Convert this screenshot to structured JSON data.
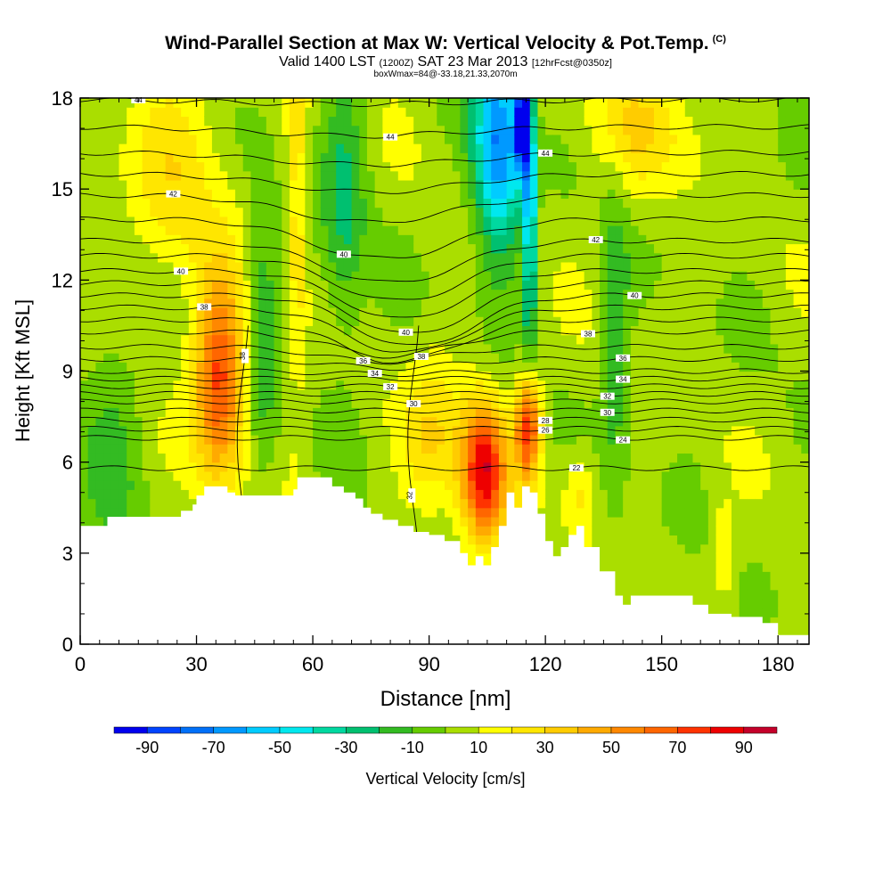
{
  "header": {
    "title": "Wind-Parallel Section at Max W: Vertical Velocity & Pot.Temp.",
    "copyright": "(C)",
    "subtitle_main": "Valid 1400 LST",
    "subtitle_zulu": "(1200Z)",
    "subtitle_date": "SAT 23 Mar 2013",
    "subtitle_fcst": "[12hrFcst@0350z]",
    "box_info": "boxWmax=84@-33.18,21.33,2070m"
  },
  "chart_data": {
    "type": "heatmap",
    "xlabel": "Distance [nm]",
    "ylabel": "Height [Kft MSL]",
    "xlim": [
      0,
      188
    ],
    "ylim": [
      0,
      18
    ],
    "x_ticks": [
      0,
      30,
      60,
      90,
      120,
      150,
      180
    ],
    "y_ticks": [
      0,
      3,
      6,
      9,
      12,
      15,
      18
    ],
    "colorbar": {
      "label": "Vertical Velocity [cm/s]",
      "ticks": [
        -90,
        -70,
        -50,
        -30,
        -10,
        10,
        30,
        50,
        70,
        90
      ],
      "bins": [
        {
          "from": -100,
          "to": -90,
          "color": "#0000ee"
        },
        {
          "from": -90,
          "to": -80,
          "color": "#0044ff"
        },
        {
          "from": -80,
          "to": -70,
          "color": "#0070f8"
        },
        {
          "from": -70,
          "to": -60,
          "color": "#0099ff"
        },
        {
          "from": -60,
          "to": -50,
          "color": "#00ccff"
        },
        {
          "from": -50,
          "to": -40,
          "color": "#00e8ee"
        },
        {
          "from": -40,
          "to": -30,
          "color": "#00d8a0"
        },
        {
          "from": -30,
          "to": -20,
          "color": "#00c070"
        },
        {
          "from": -20,
          "to": -10,
          "color": "#33bb22"
        },
        {
          "from": -10,
          "to": 0,
          "color": "#66cc00"
        },
        {
          "from": 0,
          "to": 10,
          "color": "#aade00"
        },
        {
          "from": 10,
          "to": 20,
          "color": "#ffff00"
        },
        {
          "from": 20,
          "to": 30,
          "color": "#ffe600"
        },
        {
          "from": 30,
          "to": 40,
          "color": "#ffcc00"
        },
        {
          "from": 40,
          "to": 50,
          "color": "#ffaa00"
        },
        {
          "from": 50,
          "to": 60,
          "color": "#ff8800"
        },
        {
          "from": 60,
          "to": 70,
          "color": "#ff6600"
        },
        {
          "from": 70,
          "to": 80,
          "color": "#ff3300"
        },
        {
          "from": 80,
          "to": 90,
          "color": "#ee0000"
        },
        {
          "from": 90,
          "to": 100,
          "color": "#c4002a"
        }
      ]
    },
    "vertical_velocity_features": [
      {
        "x": 36,
        "z": 8.7,
        "peak": 70,
        "sx": 4.5,
        "sz": 2.3
      },
      {
        "x": 104,
        "z": 5.7,
        "peak": 84,
        "sx": 4.0,
        "sz": 1.6
      },
      {
        "x": 115.5,
        "z": 7.2,
        "peak": 75,
        "sx": 2.2,
        "sz": 1.2
      },
      {
        "x": 91,
        "z": 6.8,
        "peak": 25,
        "sx": 5.5,
        "sz": 1.8
      },
      {
        "x": 108,
        "z": 16.5,
        "peak": -75,
        "sx": 4.5,
        "sz": 2.5
      },
      {
        "x": 114,
        "z": 17.2,
        "peak": -95,
        "sx": 1.3,
        "sz": 1.2
      },
      {
        "x": 116,
        "z": 14.0,
        "peak": -70,
        "sx": 0.9,
        "sz": 3.0
      },
      {
        "x": 68,
        "z": 14.5,
        "peak": -25,
        "sx": 4.0,
        "sz": 3.5
      },
      {
        "x": 56,
        "z": 14.0,
        "peak": 22,
        "sx": 1.8,
        "sz": 4.5
      },
      {
        "x": 25,
        "z": 15.5,
        "peak": 20,
        "sx": 9.0,
        "sz": 3.0
      },
      {
        "x": 145,
        "z": 17.0,
        "peak": 22,
        "sx": 10.0,
        "sz": 1.5
      },
      {
        "x": 138,
        "z": 10.0,
        "peak": -20,
        "sx": 2.5,
        "sz": 4.0
      },
      {
        "x": 47,
        "z": 10.5,
        "peak": -20,
        "sx": 3.0,
        "sz": 4.0
      },
      {
        "x": 129,
        "z": 5.0,
        "peak": 20,
        "sx": 3.0,
        "sz": 1.0
      },
      {
        "x": 166,
        "z": 3.0,
        "peak": 22,
        "sx": 2.0,
        "sz": 1.0
      },
      {
        "x": 8,
        "z": 7.0,
        "peak": -15,
        "sx": 6.0,
        "sz": 3.0
      }
    ],
    "terrain": {
      "x": [
        0,
        7,
        7,
        26,
        26,
        29,
        29,
        30,
        30,
        32,
        32,
        38,
        38,
        40,
        40,
        55,
        55,
        56,
        56,
        61,
        61,
        65,
        65,
        68,
        68,
        71,
        71,
        73,
        73,
        75,
        75,
        78,
        78,
        82,
        82,
        86,
        86,
        90,
        90,
        94,
        94,
        98,
        98,
        100,
        100,
        102,
        102,
        104,
        104,
        106,
        106,
        108,
        108,
        110,
        110,
        112,
        112,
        114,
        114,
        116,
        116,
        118,
        118,
        120,
        120,
        122,
        122,
        124,
        124,
        126,
        126,
        128,
        128,
        130,
        130,
        134,
        134,
        138,
        138,
        140,
        140,
        142,
        142,
        144,
        144,
        146,
        146,
        148,
        148,
        150,
        150,
        158,
        158,
        162,
        162,
        166,
        166,
        168,
        168,
        176,
        176,
        180,
        180,
        188
      ],
      "z": [
        3.9,
        3.9,
        4.2,
        4.2,
        4.4,
        4.4,
        4.6,
        4.6,
        4.9,
        4.9,
        5.2,
        5.2,
        5.0,
        5.0,
        4.9,
        4.9,
        5.1,
        5.1,
        5.5,
        5.5,
        5.5,
        5.5,
        5.2,
        5.2,
        5.0,
        5.0,
        4.8,
        4.8,
        4.5,
        4.5,
        4.3,
        4.3,
        4.1,
        4.1,
        3.9,
        3.9,
        3.7,
        3.7,
        3.6,
        3.6,
        3.4,
        3.4,
        3.0,
        3.0,
        2.6,
        2.6,
        2.9,
        2.9,
        2.6,
        2.6,
        3.2,
        3.2,
        3.9,
        3.9,
        5.0,
        5.0,
        4.5,
        4.5,
        5.2,
        5.2,
        5.0,
        5.0,
        4.3,
        4.3,
        3.4,
        3.4,
        2.9,
        2.9,
        3.2,
        3.2,
        3.6,
        3.6,
        3.9,
        3.9,
        3.2,
        3.2,
        2.4,
        2.4,
        1.6,
        1.6,
        1.3,
        1.3,
        1.6,
        1.6,
        1.6,
        1.6,
        1.6,
        1.6,
        1.6,
        1.6,
        1.6,
        1.6,
        1.3,
        1.3,
        1.0,
        1.0,
        1.0,
        1.0,
        0.9,
        0.9,
        0.7,
        0.7,
        0.3,
        0.3
      ]
    },
    "theta_contours": [
      {
        "label": "44",
        "label_x": 15,
        "base": 17.95,
        "dip": 0.15,
        "dip_x": 70,
        "dip_w": 30
      },
      {
        "label": "44",
        "label_x": 80,
        "base": 17.05,
        "dip": 0.3,
        "dip_x": 72,
        "dip_w": 25
      },
      {
        "label": "44",
        "label_x": 120,
        "base": 16.2,
        "dip": 0.4,
        "dip_x": 75,
        "dip_w": 25
      },
      {
        "label": "",
        "label_x": 0,
        "base": 15.5,
        "dip": 0.6,
        "dip_x": 75,
        "dip_w": 22
      },
      {
        "label": "42",
        "label_x": 24,
        "base": 14.8,
        "dip": 0.9,
        "dip_x": 75,
        "dip_w": 20
      },
      {
        "label": "40",
        "label_x": 68,
        "base": 14.0,
        "dip": 1.3,
        "dip_x": 78,
        "dip_w": 18
      },
      {
        "label": "42",
        "label_x": 133,
        "base": 13.3,
        "dip": 1.4,
        "dip_x": 80,
        "dip_w": 17
      },
      {
        "label": "",
        "label_x": 0,
        "base": 12.8,
        "dip": 1.5,
        "dip_x": 82,
        "dip_w": 16
      },
      {
        "label": "40",
        "label_x": 26,
        "base": 12.3,
        "dip": 1.6,
        "dip_x": 83,
        "dip_w": 15
      },
      {
        "label": "40",
        "label_x": 84,
        "base": 11.9,
        "dip": 1.7,
        "dip_x": 85,
        "dip_w": 15
      },
      {
        "label": "40",
        "label_x": 143,
        "base": 11.5,
        "dip": 1.7,
        "dip_x": 86,
        "dip_w": 15
      },
      {
        "label": "38",
        "label_x": 32,
        "base": 11.1,
        "dip": 1.5,
        "dip_x": 84,
        "dip_w": 15
      },
      {
        "label": "38",
        "label_x": 88,
        "base": 10.7,
        "dip": 1.4,
        "dip_x": 82,
        "dip_w": 15
      },
      {
        "label": "38",
        "label_x": 131,
        "base": 10.3,
        "dip": 0.8,
        "dip_x": 80,
        "dip_w": 15
      },
      {
        "label": "36",
        "label_x": 73,
        "base": 9.8,
        "dip": 0.5,
        "dip_x": 78,
        "dip_w": 15
      },
      {
        "label": "36",
        "label_x": 140,
        "base": 9.4,
        "dip": 0.3,
        "dip_x": 80,
        "dip_w": 15
      },
      {
        "label": "34",
        "label_x": 76,
        "base": 9.0,
        "dip": 0.1,
        "dip_x": 80,
        "dip_w": 15
      },
      {
        "label": "34",
        "label_x": 140,
        "base": 8.75,
        "dip": 0.0,
        "dip_x": 80,
        "dip_w": 15
      },
      {
        "label": "32",
        "label_x": 80,
        "base": 8.5,
        "dip": 0.0,
        "dip_x": 80,
        "dip_w": 15
      },
      {
        "label": "32",
        "label_x": 136,
        "base": 8.25,
        "dip": 0.0,
        "dip_x": 80,
        "dip_w": 15
      },
      {
        "label": "30",
        "label_x": 86,
        "base": 8.0,
        "dip": 0.0,
        "dip_x": 80,
        "dip_w": 15
      },
      {
        "label": "30",
        "label_x": 136,
        "base": 7.7,
        "dip": 0.0,
        "dip_x": 80,
        "dip_w": 15
      },
      {
        "label": "28",
        "label_x": 120,
        "base": 7.4,
        "dip": 0.0,
        "dip_x": 80,
        "dip_w": 15
      },
      {
        "label": "26",
        "label_x": 120,
        "base": 7.1,
        "dip": 0.0,
        "dip_x": 80,
        "dip_w": 15
      },
      {
        "label": "24",
        "label_x": 140,
        "base": 6.8,
        "dip": 0.0,
        "dip_x": 80,
        "dip_w": 15
      },
      {
        "label": "22",
        "label_x": 128,
        "base": 5.8,
        "dip": 0.0,
        "dip_x": 80,
        "dip_w": 15
      }
    ],
    "vertical_contours": [
      {
        "label": "38",
        "label_x": 42,
        "label_z": 9.5,
        "x": 42
      },
      {
        "label": "32",
        "label_x": 86,
        "label_z": 4.9,
        "x": 86
      }
    ]
  }
}
